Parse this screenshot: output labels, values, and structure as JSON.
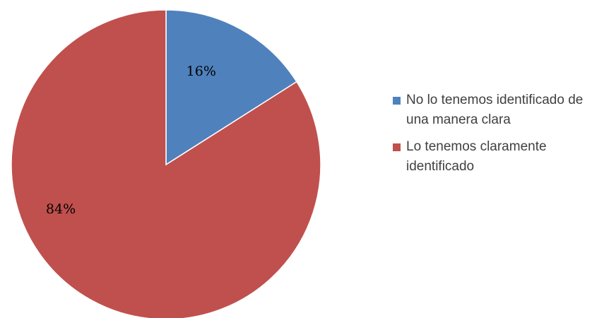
{
  "chart_data": {
    "type": "pie",
    "title": "",
    "start_angle_deg": 0,
    "direction": "clockwise",
    "legend_position": "right",
    "slices": [
      {
        "label": "No lo tenemos identificado de una manera clara",
        "value": 16,
        "value_label": "16%",
        "color": "#4F81BD"
      },
      {
        "label": "Lo tenemos claramente identificado",
        "value": 84,
        "value_label": "84%",
        "color": "#C0504D"
      }
    ]
  }
}
